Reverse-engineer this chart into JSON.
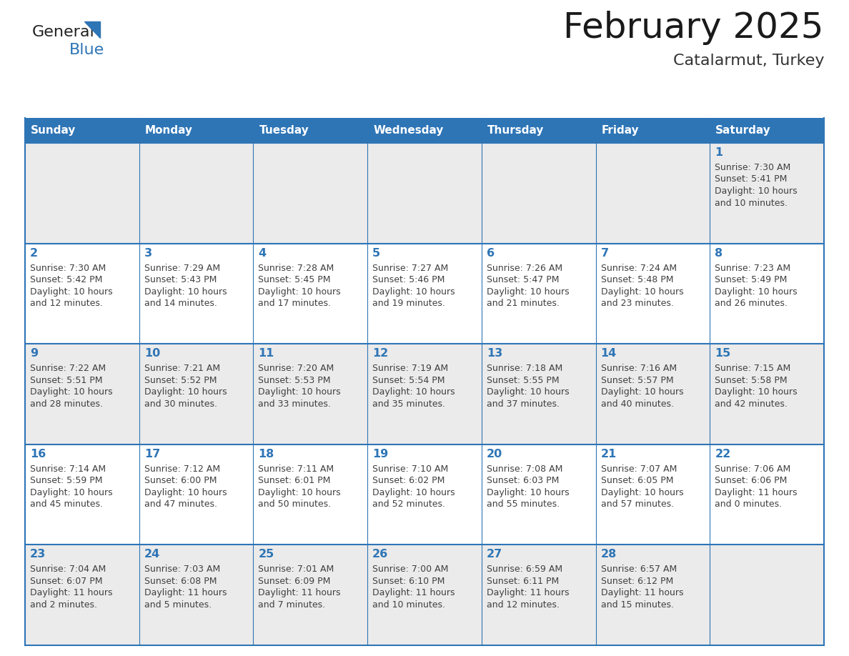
{
  "title": "February 2025",
  "subtitle": "Catalarmut, Turkey",
  "days_of_week": [
    "Sunday",
    "Monday",
    "Tuesday",
    "Wednesday",
    "Thursday",
    "Friday",
    "Saturday"
  ],
  "header_bg": "#2E75B6",
  "header_text": "#FFFFFF",
  "cell_border": "#2E75B6",
  "day_number_color": "#2E75B6",
  "info_text_color": "#404040",
  "row_bg": [
    "#EBEBEB",
    "#FFFFFF",
    "#EBEBEB",
    "#FFFFFF",
    "#EBEBEB"
  ],
  "normal_row_bg": "#FFFFFF",
  "calendar_data": [
    [
      null,
      null,
      null,
      null,
      null,
      null,
      {
        "day": 1,
        "sunrise": "7:30 AM",
        "sunset": "5:41 PM",
        "daylight": "10 hours",
        "daylight2": "and 10 minutes."
      }
    ],
    [
      {
        "day": 2,
        "sunrise": "7:30 AM",
        "sunset": "5:42 PM",
        "daylight": "10 hours",
        "daylight2": "and 12 minutes."
      },
      {
        "day": 3,
        "sunrise": "7:29 AM",
        "sunset": "5:43 PM",
        "daylight": "10 hours",
        "daylight2": "and 14 minutes."
      },
      {
        "day": 4,
        "sunrise": "7:28 AM",
        "sunset": "5:45 PM",
        "daylight": "10 hours",
        "daylight2": "and 17 minutes."
      },
      {
        "day": 5,
        "sunrise": "7:27 AM",
        "sunset": "5:46 PM",
        "daylight": "10 hours",
        "daylight2": "and 19 minutes."
      },
      {
        "day": 6,
        "sunrise": "7:26 AM",
        "sunset": "5:47 PM",
        "daylight": "10 hours",
        "daylight2": "and 21 minutes."
      },
      {
        "day": 7,
        "sunrise": "7:24 AM",
        "sunset": "5:48 PM",
        "daylight": "10 hours",
        "daylight2": "and 23 minutes."
      },
      {
        "day": 8,
        "sunrise": "7:23 AM",
        "sunset": "5:49 PM",
        "daylight": "10 hours",
        "daylight2": "and 26 minutes."
      }
    ],
    [
      {
        "day": 9,
        "sunrise": "7:22 AM",
        "sunset": "5:51 PM",
        "daylight": "10 hours",
        "daylight2": "and 28 minutes."
      },
      {
        "day": 10,
        "sunrise": "7:21 AM",
        "sunset": "5:52 PM",
        "daylight": "10 hours",
        "daylight2": "and 30 minutes."
      },
      {
        "day": 11,
        "sunrise": "7:20 AM",
        "sunset": "5:53 PM",
        "daylight": "10 hours",
        "daylight2": "and 33 minutes."
      },
      {
        "day": 12,
        "sunrise": "7:19 AM",
        "sunset": "5:54 PM",
        "daylight": "10 hours",
        "daylight2": "and 35 minutes."
      },
      {
        "day": 13,
        "sunrise": "7:18 AM",
        "sunset": "5:55 PM",
        "daylight": "10 hours",
        "daylight2": "and 37 minutes."
      },
      {
        "day": 14,
        "sunrise": "7:16 AM",
        "sunset": "5:57 PM",
        "daylight": "10 hours",
        "daylight2": "and 40 minutes."
      },
      {
        "day": 15,
        "sunrise": "7:15 AM",
        "sunset": "5:58 PM",
        "daylight": "10 hours",
        "daylight2": "and 42 minutes."
      }
    ],
    [
      {
        "day": 16,
        "sunrise": "7:14 AM",
        "sunset": "5:59 PM",
        "daylight": "10 hours",
        "daylight2": "and 45 minutes."
      },
      {
        "day": 17,
        "sunrise": "7:12 AM",
        "sunset": "6:00 PM",
        "daylight": "10 hours",
        "daylight2": "and 47 minutes."
      },
      {
        "day": 18,
        "sunrise": "7:11 AM",
        "sunset": "6:01 PM",
        "daylight": "10 hours",
        "daylight2": "and 50 minutes."
      },
      {
        "day": 19,
        "sunrise": "7:10 AM",
        "sunset": "6:02 PM",
        "daylight": "10 hours",
        "daylight2": "and 52 minutes."
      },
      {
        "day": 20,
        "sunrise": "7:08 AM",
        "sunset": "6:03 PM",
        "daylight": "10 hours",
        "daylight2": "and 55 minutes."
      },
      {
        "day": 21,
        "sunrise": "7:07 AM",
        "sunset": "6:05 PM",
        "daylight": "10 hours",
        "daylight2": "and 57 minutes."
      },
      {
        "day": 22,
        "sunrise": "7:06 AM",
        "sunset": "6:06 PM",
        "daylight": "11 hours",
        "daylight2": "and 0 minutes."
      }
    ],
    [
      {
        "day": 23,
        "sunrise": "7:04 AM",
        "sunset": "6:07 PM",
        "daylight": "11 hours",
        "daylight2": "and 2 minutes."
      },
      {
        "day": 24,
        "sunrise": "7:03 AM",
        "sunset": "6:08 PM",
        "daylight": "11 hours",
        "daylight2": "and 5 minutes."
      },
      {
        "day": 25,
        "sunrise": "7:01 AM",
        "sunset": "6:09 PM",
        "daylight": "11 hours",
        "daylight2": "and 7 minutes."
      },
      {
        "day": 26,
        "sunrise": "7:00 AM",
        "sunset": "6:10 PM",
        "daylight": "11 hours",
        "daylight2": "and 10 minutes."
      },
      {
        "day": 27,
        "sunrise": "6:59 AM",
        "sunset": "6:11 PM",
        "daylight": "11 hours",
        "daylight2": "and 12 minutes."
      },
      {
        "day": 28,
        "sunrise": "6:57 AM",
        "sunset": "6:12 PM",
        "daylight": "11 hours",
        "daylight2": "and 15 minutes."
      },
      null
    ]
  ],
  "logo_text_general": "General",
  "logo_text_blue": "Blue",
  "logo_color_general": "#222222",
  "logo_color_blue": "#2E75B6",
  "logo_triangle_color": "#2E75B6",
  "fig_width": 11.88,
  "fig_height": 9.18,
  "dpi": 100
}
